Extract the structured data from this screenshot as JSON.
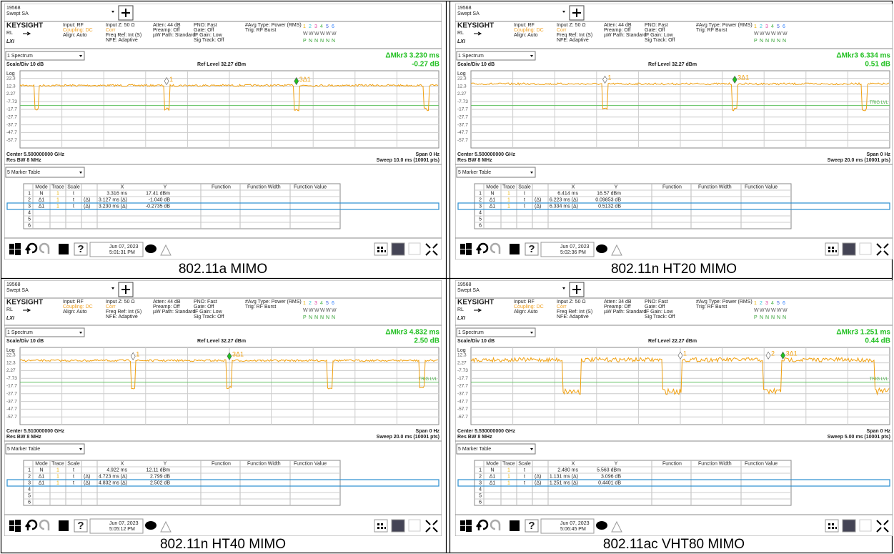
{
  "panels": [
    {
      "instrument": "19568",
      "mode": "Swept SA",
      "brand": "KEYSIGHT",
      "rl": "RL",
      "lxi": "LXI",
      "settings": [
        [
          "Input: RF",
          "Coupling: DC",
          "Align: Auto"
        ],
        [
          "Input Z: 50 Ω",
          "Corr",
          "Freq Ref: Int (S)",
          "NFE: Adaptive"
        ],
        [
          "Atten: 44 dB",
          "Preamp: Off",
          "µW Path: Standard"
        ],
        [
          "PNO: Fast",
          "Gate: Off",
          "IF Gain: Low",
          "Sig Track: Off"
        ],
        [
          "#Avg Type: Power (RMS)",
          "Trig: RF Burst"
        ]
      ],
      "trace_numbers": [
        "1",
        "2",
        "3",
        "4",
        "5",
        "6"
      ],
      "trace_types": [
        "W",
        "W",
        "W",
        "W",
        "W",
        "W"
      ],
      "detectors": [
        "P",
        "N",
        "N",
        "N",
        "N",
        "N"
      ],
      "window": "1 Spectrum",
      "readout": [
        "ΔMkr3  3.230 ms",
        "-0.27 dB"
      ],
      "scale": "Scale/Div 10 dB",
      "log": "Log",
      "ref_level": "Ref Level 32.27 dBm",
      "y_labels": [
        "22.3",
        "12.3",
        "2.27",
        "-7.73",
        "-17.7",
        "-27.7",
        "-37.7",
        "-47.7",
        "-57.7"
      ],
      "markers": [
        "1",
        "3Δ1"
      ],
      "center": "Center 5.500000000 GHz",
      "rbw": "Res BW 8 MHz",
      "span": "Span 0 Hz",
      "sweep": "Sweep 10.0 ms (10001 pts)",
      "table_view": "5 Marker Table",
      "table": {
        "headers": [
          "Mode",
          "Trace",
          "Scale",
          "X",
          "Y",
          "Function",
          "Function Width",
          "Function Value"
        ],
        "rows": [
          {
            "n": "1",
            "mode": "N",
            "trace": "1",
            "scale": "t",
            "x": "3.316 ms",
            "y": "17.41 dBm"
          },
          {
            "n": "2",
            "mode": "Δ1",
            "trace": "1",
            "scale": "t",
            "ref": "(Δ)",
            "x": "3.127 ms (Δ)",
            "y": "-1.040 dB"
          },
          {
            "n": "3",
            "mode": "Δ1",
            "trace": "1",
            "scale": "t",
            "ref": "(Δ)",
            "x": "3.230 ms (Δ)",
            "y": "-0.2735 dB"
          },
          {
            "n": "4"
          },
          {
            "n": "5"
          },
          {
            "n": "6"
          }
        ]
      },
      "date": "Jun 07, 2023",
      "time": "5:01:31 PM",
      "caption": "802.11a MIMO"
    },
    {
      "instrument": "19568",
      "mode": "Swept SA",
      "brand": "KEYSIGHT",
      "rl": "RL",
      "lxi": "LXI",
      "settings": [
        [
          "Input: RF",
          "Coupling: DC",
          "Align: Auto"
        ],
        [
          "Input Z: 50 Ω",
          "Corr",
          "Freq Ref: Int (S)",
          "NFE: Adaptive"
        ],
        [
          "Atten: 44 dB",
          "Preamp: Off",
          "µW Path: Standard"
        ],
        [
          "PNO: Fast",
          "Gate: Off",
          "IF Gain: Low",
          "Sig Track: Off"
        ],
        [
          "#Avg Type: Power (RMS)",
          "Trig: RF Burst"
        ]
      ],
      "trace_numbers": [
        "1",
        "2",
        "3",
        "4",
        "5",
        "6"
      ],
      "trace_types": [
        "W",
        "W",
        "W",
        "W",
        "W",
        "W"
      ],
      "detectors": [
        "P",
        "N",
        "N",
        "N",
        "N",
        "N"
      ],
      "window": "1 Spectrum",
      "readout": [
        "ΔMkr3  6.334 ms",
        "0.51 dB"
      ],
      "scale": "Scale/Div 10 dB",
      "log": "Log",
      "ref_level": "Ref Level 32.27 dBm",
      "y_labels": [
        "22.3",
        "12.3",
        "2.27",
        "-7.73",
        "-17.7",
        "-27.7",
        "-37.7",
        "-47.7",
        "-57.7"
      ],
      "trig": "TRIG LVL",
      "markers": [
        "1",
        "3Δ1"
      ],
      "center": "Center 5.500000000 GHz",
      "rbw": "Res BW 8 MHz",
      "span": "Span 0 Hz",
      "sweep": "Sweep 20.0 ms (10001 pts)",
      "table_view": "5 Marker Table",
      "table": {
        "headers": [
          "Mode",
          "Trace",
          "Scale",
          "X",
          "Y",
          "Function",
          "Function Width",
          "Function Value"
        ],
        "rows": [
          {
            "n": "1",
            "mode": "N",
            "trace": "1",
            "scale": "t",
            "x": "6.414 ms",
            "y": "16.57 dBm"
          },
          {
            "n": "2",
            "mode": "Δ1",
            "trace": "1",
            "scale": "t",
            "ref": "(Δ)",
            "x": "6.223 ms (Δ)",
            "y": "0.09853 dB"
          },
          {
            "n": "3",
            "mode": "Δ1",
            "trace": "1",
            "scale": "t",
            "ref": "(Δ)",
            "x": "6.334 ms (Δ)",
            "y": "0.5132 dB"
          },
          {
            "n": "4"
          },
          {
            "n": "5"
          },
          {
            "n": "6"
          }
        ]
      },
      "date": "Jun 07, 2023",
      "time": "5:02:36 PM",
      "caption": "802.11n HT20 MIMO"
    },
    {
      "instrument": "19568",
      "mode": "Swept SA",
      "brand": "KEYSIGHT",
      "rl": "RL",
      "lxi": "LXI",
      "settings": [
        [
          "Input: RF",
          "Coupling: DC",
          "Align: Auto"
        ],
        [
          "Input Z: 50 Ω",
          "Corr",
          "Freq Ref: Int (S)",
          "NFE: Adaptive"
        ],
        [
          "Atten: 44 dB",
          "Preamp: Off",
          "µW Path: Standard"
        ],
        [
          "PNO: Fast",
          "Gate: Off",
          "IF Gain: Low",
          "Sig Track: Off"
        ],
        [
          "#Avg Type: Power (RMS)",
          "Trig: RF Burst"
        ]
      ],
      "trace_numbers": [
        "1",
        "2",
        "3",
        "4",
        "5",
        "6"
      ],
      "trace_types": [
        "W",
        "W",
        "W",
        "W",
        "W",
        "W"
      ],
      "detectors": [
        "P",
        "N",
        "N",
        "N",
        "N",
        "N"
      ],
      "window": "1 Spectrum",
      "readout": [
        "ΔMkr3  4.832 ms",
        "2.50 dB"
      ],
      "scale": "Scale/Div 10 dB",
      "log": "Log",
      "ref_level": "Ref Level 32.27 dBm",
      "y_labels": [
        "22.3",
        "12.3",
        "2.27",
        "-7.73",
        "-17.7",
        "-27.7",
        "-37.7",
        "-47.7",
        "-57.7"
      ],
      "trig": "TRIG LVL",
      "markers": [
        "1",
        "3Δ1"
      ],
      "center": "Center 5.510000000 GHz",
      "rbw": "Res BW 8 MHz",
      "span": "Span 0 Hz",
      "sweep": "Sweep 20.0 ms (10001 pts)",
      "table_view": "5 Marker Table",
      "table": {
        "headers": [
          "Mode",
          "Trace",
          "Scale",
          "X",
          "Y",
          "Function",
          "Function Width",
          "Function Value"
        ],
        "rows": [
          {
            "n": "1",
            "mode": "N",
            "trace": "1",
            "scale": "t",
            "x": "4.922 ms",
            "y": "12.11 dBm"
          },
          {
            "n": "2",
            "mode": "Δ1",
            "trace": "1",
            "scale": "t",
            "ref": "(Δ)",
            "x": "4.723 ms (Δ)",
            "y": "2.799 dB"
          },
          {
            "n": "3",
            "mode": "Δ1",
            "trace": "1",
            "scale": "t",
            "ref": "(Δ)",
            "x": "4.832 ms (Δ)",
            "y": "2.502 dB"
          },
          {
            "n": "4"
          },
          {
            "n": "5"
          },
          {
            "n": "6"
          }
        ]
      },
      "date": "Jun 07, 2023",
      "time": "5:05:12 PM",
      "caption": "802.11n HT40 MIMO"
    },
    {
      "instrument": "19568",
      "mode": "Swept SA",
      "brand": "KEYSIGHT",
      "rl": "RL",
      "lxi": "LXI",
      "settings": [
        [
          "Input: RF",
          "Coupling: DC",
          "Align: Auto"
        ],
        [
          "Input Z: 50 Ω",
          "Corr",
          "Freq Ref: Int (S)",
          "NFE: Adaptive"
        ],
        [
          "Atten: 34 dB",
          "Preamp: Off",
          "µW Path: Standard"
        ],
        [
          "PNO: Fast",
          "Gate: Off",
          "IF Gain: Low",
          "Sig Track: Off"
        ],
        [
          "#Avg Type: Power (RMS)",
          "Trig: RF Burst"
        ]
      ],
      "trace_numbers": [
        "1",
        "2",
        "3",
        "4",
        "5",
        "6"
      ],
      "trace_types": [
        "W",
        "W",
        "W",
        "W",
        "W",
        "W"
      ],
      "detectors": [
        "P",
        "N",
        "N",
        "N",
        "N",
        "N"
      ],
      "window": "1 Spectrum",
      "readout": [
        "ΔMkr3  1.251 ms",
        "0.44 dB"
      ],
      "scale": "Scale/Div 10 dB",
      "log": "Log",
      "ref_level": "Ref Level 22.27 dBm",
      "y_labels": [
        "12.3",
        "2.27",
        "-7.73",
        "-17.7",
        "-27.7",
        "-37.7",
        "-47.7",
        "-57.7",
        "-67.7"
      ],
      "trig": "TRIG LVL",
      "markers": [
        "1",
        "2",
        "3Δ1"
      ],
      "center": "Center 5.530000000 GHz",
      "rbw": "Res BW 8 MHz",
      "span": "Span 0 Hz",
      "sweep": "Sweep 5.00 ms (10001 pts)",
      "table_view": "5 Marker Table",
      "table": {
        "headers": [
          "Mode",
          "Trace",
          "Scale",
          "X",
          "Y",
          "Function",
          "Function Width",
          "Function Value"
        ],
        "rows": [
          {
            "n": "1",
            "mode": "N",
            "trace": "1",
            "scale": "t",
            "x": "2.480 ms",
            "y": "5.563 dBm"
          },
          {
            "n": "2",
            "mode": "Δ1",
            "trace": "1",
            "scale": "t",
            "ref": "(Δ)",
            "x": "1.131 ms (Δ)",
            "y": "3.096 dB"
          },
          {
            "n": "3",
            "mode": "Δ1",
            "trace": "1",
            "scale": "t",
            "ref": "(Δ)",
            "x": "1.251 ms (Δ)",
            "y": "0.4401 dB"
          },
          {
            "n": "4"
          },
          {
            "n": "5"
          },
          {
            "n": "6"
          }
        ]
      },
      "date": "Jun 07, 2023",
      "time": "5:06:45 PM",
      "caption": "802.11ac VHT80 MIMO"
    }
  ]
}
